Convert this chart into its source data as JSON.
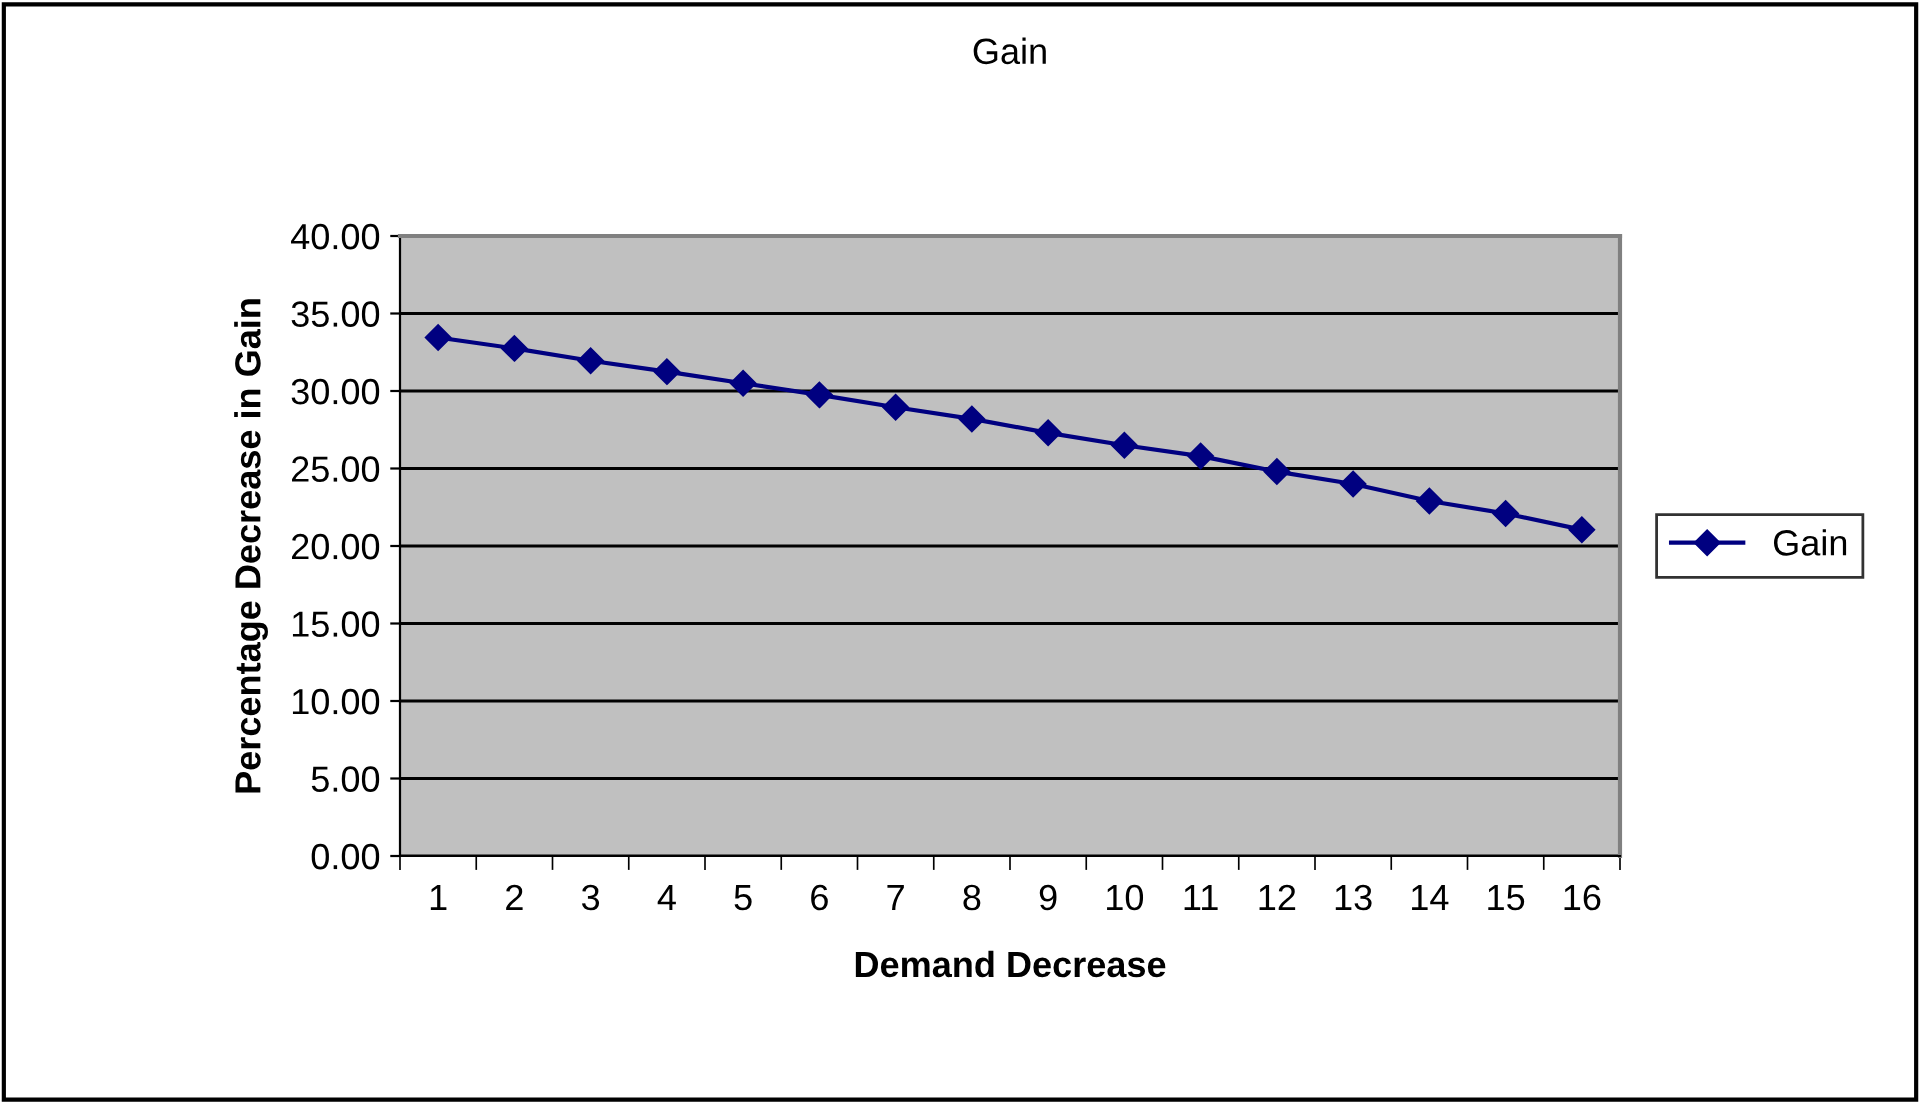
{
  "chart_data": {
    "type": "line",
    "title": "Gain",
    "xlabel": "Demand Decrease",
    "ylabel": "Percentage Decrease in Gain",
    "categories": [
      "1",
      "2",
      "3",
      "4",
      "5",
      "6",
      "7",
      "8",
      "9",
      "10",
      "11",
      "12",
      "13",
      "14",
      "15",
      "16"
    ],
    "series": [
      {
        "name": "Gain",
        "color": "#000080",
        "values": [
          33.45,
          32.75,
          31.95,
          31.25,
          30.5,
          29.75,
          28.95,
          28.2,
          27.3,
          26.5,
          25.8,
          24.8,
          24.0,
          22.9,
          22.1,
          21.05
        ]
      }
    ],
    "ylim": [
      0,
      40
    ],
    "yticks": [
      {
        "value": 0,
        "label": "0.00"
      },
      {
        "value": 5,
        "label": "5.00"
      },
      {
        "value": 10,
        "label": "10.00"
      },
      {
        "value": 15,
        "label": "15.00"
      },
      {
        "value": 20,
        "label": "20.00"
      },
      {
        "value": 25,
        "label": "25.00"
      },
      {
        "value": 30,
        "label": "30.00"
      },
      {
        "value": 35,
        "label": "35.00"
      },
      {
        "value": 40,
        "label": "40.00"
      }
    ],
    "grid": "y",
    "legend": "right",
    "marker": "diamond",
    "line_style": "solid"
  }
}
